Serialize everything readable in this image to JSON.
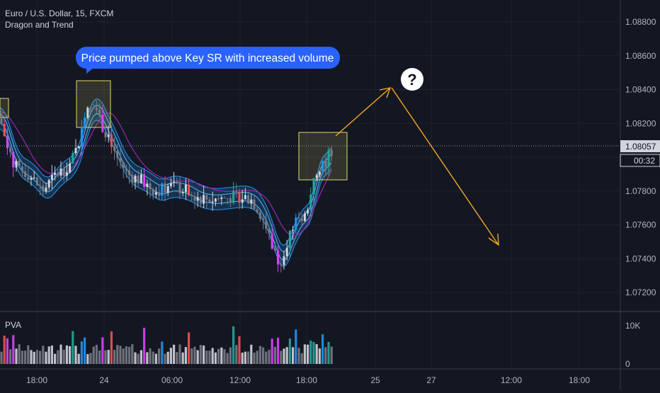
{
  "header": {
    "symbol_title": "Euro / U.S. Dollar, 15, FXCM",
    "indicator_name": "Dragon and Trend"
  },
  "annotation": {
    "callout_text": "Price pumped above Key SR with increased volume",
    "question_mark": "?"
  },
  "price_axis": {
    "ticks": [
      "1.08800",
      "1.08600",
      "1.08400",
      "1.08200",
      "1.07800",
      "1.07600",
      "1.07400",
      "1.07200"
    ],
    "tick_values": [
      1.088,
      1.086,
      1.084,
      1.082,
      1.078,
      1.076,
      1.074,
      1.072
    ],
    "current_price_label": "1.08057",
    "current_price": 1.08057,
    "countdown_label": "00:32",
    "range": [
      1.0706,
      1.0895
    ]
  },
  "volume_pane": {
    "label": "PVA",
    "ticks": [
      "10K",
      "0"
    ],
    "range": [
      0,
      10000
    ]
  },
  "time_axis": {
    "labels": [
      "18:00",
      "24",
      "06:00",
      "12:00",
      "18:00",
      "25",
      "27",
      "12:00",
      "18:00"
    ]
  },
  "colors": {
    "background": "#131722",
    "up_candle": "#d1d4dc",
    "down_candle": "#787b86",
    "climax_up": "#26a69a",
    "climax_down": "#ef5350",
    "vector_up": "#2196f3",
    "vector_down": "#e040fb",
    "ema_band": "#2196f3",
    "slow_ma": "#9c27b0",
    "projection": "#f5a623",
    "highlight_box": "#fff176",
    "callout_bg": "#2962ff"
  },
  "chart_data": {
    "type": "candlestick",
    "series": [
      {
        "name": "price",
        "open_start": 1.0822,
        "values_approx": "EUR/USD 15m candles from ~1.0822 down to low 1.0731 then rally to 1.0806"
      }
    ],
    "ylim": [
      1.0706,
      1.0895
    ],
    "grid": true
  }
}
